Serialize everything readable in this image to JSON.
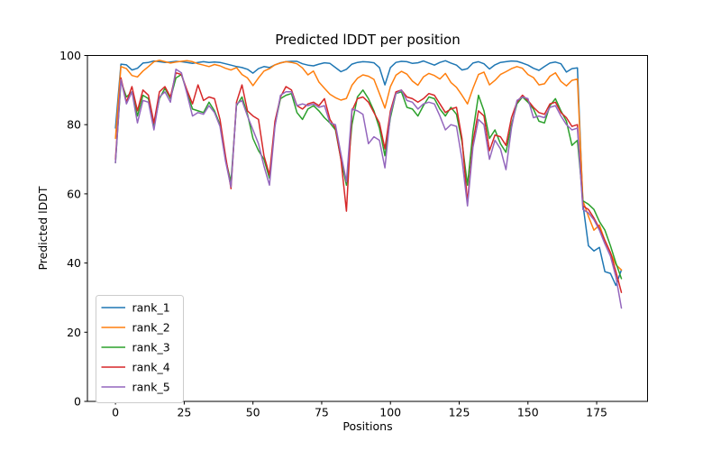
{
  "chart_data": {
    "type": "line",
    "title": "Predicted lDDT per position",
    "xlabel": "Positions",
    "ylabel": "Predicted lDDT",
    "xlim": [
      -10.2,
      193.5
    ],
    "ylim": [
      0,
      100
    ],
    "x_ticks": [
      0,
      25,
      50,
      75,
      100,
      125,
      150,
      175
    ],
    "y_ticks": [
      0,
      20,
      40,
      60,
      80,
      100
    ],
    "grid": false,
    "legend_position": "lower left",
    "line_width": 1.5,
    "x": [
      0,
      2,
      4,
      6,
      8,
      10,
      12,
      14,
      16,
      18,
      20,
      22,
      24,
      26,
      28,
      30,
      32,
      34,
      36,
      38,
      40,
      42,
      44,
      46,
      48,
      50,
      52,
      54,
      56,
      58,
      60,
      62,
      64,
      66,
      68,
      70,
      72,
      74,
      76,
      78,
      80,
      82,
      84,
      86,
      88,
      90,
      92,
      94,
      96,
      98,
      100,
      102,
      104,
      106,
      108,
      110,
      112,
      114,
      116,
      118,
      120,
      122,
      124,
      126,
      128,
      130,
      132,
      134,
      136,
      138,
      140,
      142,
      144,
      146,
      148,
      150,
      152,
      154,
      156,
      158,
      160,
      162,
      164,
      166,
      168,
      170,
      172,
      174,
      176,
      178,
      180,
      182,
      184
    ],
    "series": [
      {
        "name": "rank_1",
        "color": "#1f77b4",
        "values": [
          79,
          97.5,
          97.3,
          95.8,
          96.3,
          97.8,
          98,
          98.4,
          98.2,
          98,
          98.1,
          98.3,
          98.2,
          98,
          97.7,
          98,
          98.2,
          98,
          98.1,
          98,
          97.6,
          97.2,
          96.8,
          96.5,
          96,
          94.9,
          96.2,
          96.8,
          96.5,
          97.3,
          97.9,
          98.2,
          98.3,
          98.3,
          97.6,
          97.2,
          97,
          97.5,
          97.9,
          97.7,
          96.5,
          95.3,
          96,
          97.5,
          98,
          98.2,
          98.1,
          97.9,
          96.5,
          91.5,
          96.5,
          98,
          98.3,
          98.2,
          97.7,
          97.9,
          98.4,
          97.8,
          97.2,
          98,
          98.5,
          97.8,
          97.2,
          95.8,
          96.2,
          97.8,
          98.2,
          97.6,
          96.1,
          97.3,
          98,
          98.2,
          98.4,
          98.3,
          97.8,
          97.2,
          96.3,
          95.7,
          96.8,
          97.8,
          98.1,
          97.6,
          95.2,
          96.2,
          96.4,
          57,
          45,
          43.5,
          44.5,
          37.5,
          37,
          33.5,
          38
        ]
      },
      {
        "name": "rank_2",
        "color": "#ff7f0e",
        "values": [
          76,
          96.8,
          96.2,
          94.2,
          93.8,
          95.5,
          96.8,
          98.2,
          98.6,
          98.2,
          97.8,
          98.1,
          98.3,
          98.5,
          98.2,
          97.6,
          97.2,
          96.8,
          97.4,
          97,
          96.3,
          95.8,
          96.5,
          94.5,
          93.5,
          91.3,
          93.5,
          95.5,
          96.2,
          97.3,
          97.8,
          98.2,
          98,
          97.6,
          96.4,
          94.4,
          95.5,
          92.3,
          90.5,
          88.8,
          87.8,
          87.1,
          87.6,
          91.4,
          93.4,
          94.4,
          94,
          93.1,
          89,
          84.8,
          91,
          94.3,
          95.4,
          94.6,
          92.6,
          91.4,
          93.8,
          94.8,
          94.2,
          93.2,
          94.8,
          92.2,
          90.8,
          88.5,
          86,
          90.5,
          94.5,
          95.2,
          91.5,
          92.8,
          94.5,
          95.3,
          96.2,
          96.8,
          96.3,
          94.5,
          93.6,
          91.5,
          91.8,
          94,
          95,
          92.5,
          91.2,
          92.8,
          93.2,
          58,
          53.5,
          49.5,
          51,
          46.5,
          43,
          39.5,
          38
        ]
      },
      {
        "name": "rank_3",
        "color": "#2ca02c",
        "values": [
          69,
          92.5,
          88,
          89.5,
          82.5,
          88.5,
          87.5,
          79.5,
          87.5,
          90.5,
          87.5,
          93.5,
          94.5,
          89.5,
          84.5,
          84,
          83.5,
          86.5,
          84,
          80,
          70,
          63.5,
          85.5,
          88,
          83,
          76,
          72.5,
          70,
          64.5,
          80,
          87.5,
          88.5,
          89,
          83.5,
          81.5,
          84.5,
          85.5,
          84,
          82,
          80.5,
          78.5,
          70,
          62.5,
          80,
          88,
          90,
          87.5,
          84,
          79,
          71,
          82,
          89,
          89.5,
          85,
          84.5,
          82.5,
          85.5,
          88,
          87.5,
          84.5,
          82.5,
          85,
          83,
          75,
          62.5,
          78,
          88.5,
          84,
          76,
          78.5,
          74.5,
          72,
          80,
          86,
          88,
          86.5,
          84.5,
          81,
          80.5,
          85.5,
          87.5,
          84,
          81,
          74,
          75.5,
          58,
          57,
          55.5,
          52,
          49.5,
          45,
          40,
          35.5
        ]
      },
      {
        "name": "rank_4",
        "color": "#d62728",
        "values": [
          70,
          93.5,
          86.5,
          91,
          84,
          90,
          88.5,
          80.5,
          89.5,
          91,
          88,
          95,
          94.5,
          90,
          86,
          91.5,
          87,
          88,
          87.5,
          81.5,
          71,
          61.5,
          86.5,
          91.5,
          84,
          82.5,
          81.5,
          71,
          65.5,
          81,
          88,
          91,
          90,
          85.5,
          84.5,
          86,
          86.5,
          85.5,
          87.5,
          81.5,
          79,
          70,
          55,
          84,
          87.5,
          88,
          86.5,
          83.5,
          80.5,
          73,
          84,
          89.5,
          90,
          88,
          87.5,
          86.5,
          87.5,
          89,
          88.5,
          86,
          83.5,
          84.5,
          85,
          76,
          57.5,
          75,
          84,
          82.5,
          72.5,
          77,
          76.5,
          74,
          82,
          86.5,
          88.5,
          87,
          85,
          83.5,
          83,
          86,
          86.5,
          83.5,
          82,
          79.5,
          80,
          56.5,
          55.5,
          53,
          50,
          46.5,
          43,
          37.5,
          31.5
        ]
      },
      {
        "name": "rank_5",
        "color": "#9467bd",
        "values": [
          69,
          93,
          86,
          89.5,
          80.5,
          87,
          86.5,
          78.5,
          88,
          89.5,
          86.5,
          96,
          95,
          89,
          82.5,
          83.5,
          83,
          85.5,
          83.5,
          79.5,
          69.5,
          62,
          86,
          87,
          82.5,
          78.5,
          74.5,
          68,
          62.5,
          79.5,
          88.5,
          89.5,
          89.5,
          85.5,
          86,
          85.5,
          86,
          85,
          85.5,
          80.5,
          80,
          71.5,
          63.5,
          84.5,
          84,
          83,
          74.5,
          76.5,
          75.5,
          67.5,
          83,
          89,
          90,
          87,
          86.5,
          84.5,
          86,
          86.5,
          86,
          82.5,
          78.5,
          80,
          79.5,
          70,
          56.5,
          73.5,
          81.5,
          80,
          70,
          75.5,
          73,
          67,
          79,
          87,
          88,
          87.5,
          82,
          82.5,
          82,
          85,
          85.5,
          82.5,
          80,
          78.5,
          79,
          55.5,
          54.5,
          52.5,
          49.5,
          45.5,
          42,
          36,
          27
        ]
      }
    ]
  },
  "colors": {
    "axis": "#000000",
    "legend_border": "#cccccc",
    "background": "#ffffff"
  }
}
